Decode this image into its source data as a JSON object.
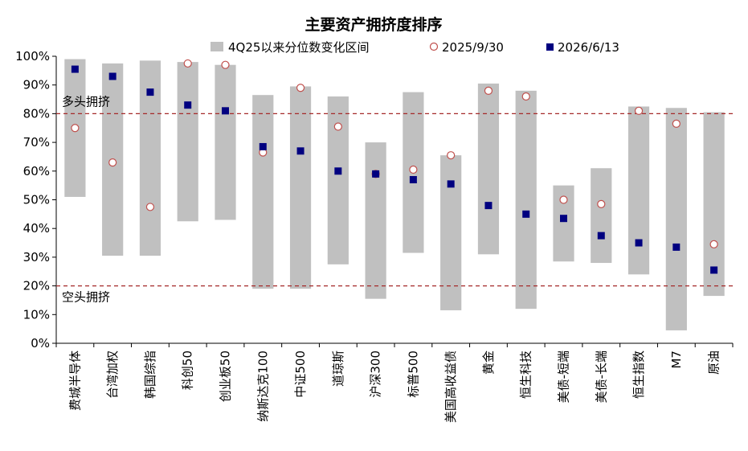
{
  "chart_data": {
    "type": "range-scatter",
    "title": "主要资产拥挤度排序",
    "categories": [
      "费城半导体",
      "台湾加权",
      "韩国综指",
      "科创50",
      "创业板50",
      "纳斯达克100",
      "中证500",
      "道琼斯",
      "沪深300",
      "标普500",
      "美国高收益债",
      "黄金",
      "恒生科技",
      "美债-短端",
      "美债-长端",
      "恒生指数",
      "M7",
      "原油"
    ],
    "ylim": [
      0,
      100
    ],
    "yticks": [
      "0%",
      "10%",
      "20%",
      "30%",
      "40%",
      "50%",
      "60%",
      "70%",
      "80%",
      "90%",
      "100%"
    ],
    "series": [
      {
        "name": "4Q25以来分位数变化区间",
        "kind": "range",
        "color": "#c0c0c0",
        "low": [
          51,
          30.5,
          30.5,
          42.5,
          43,
          19,
          19,
          27.5,
          15.5,
          31.5,
          11.5,
          31,
          12,
          28.5,
          28,
          24,
          4.5,
          16.5
        ],
        "high": [
          99,
          97.5,
          98.5,
          98,
          97,
          86.5,
          89.5,
          86,
          70,
          87.5,
          65.5,
          90.5,
          88,
          55,
          61,
          82.5,
          82,
          80.5
        ]
      },
      {
        "name": "2025/9/30",
        "kind": "circle",
        "color": "#ffffff",
        "stroke": "#c0504d",
        "values": [
          75,
          63,
          47.5,
          97.5,
          97,
          66.5,
          89,
          75.5,
          59,
          60.5,
          65.5,
          88,
          86,
          50,
          48.5,
          81,
          76.5,
          34.5
        ]
      },
      {
        "name": "2026/6/13",
        "kind": "square",
        "color": "#000080",
        "values": [
          95.5,
          93,
          87.5,
          83,
          81,
          68.5,
          67,
          60,
          59,
          57,
          55.5,
          48,
          45,
          43.5,
          37.5,
          35,
          33.5,
          25.5
        ]
      }
    ],
    "reference_lines": [
      {
        "value": 80,
        "label": "多头拥挤",
        "color": "#a52a2a"
      },
      {
        "value": 20,
        "label": "空头拥挤",
        "color": "#a52a2a"
      }
    ]
  }
}
